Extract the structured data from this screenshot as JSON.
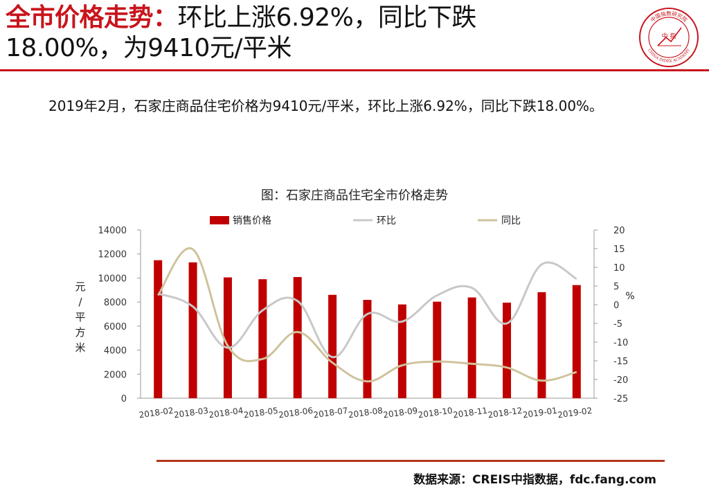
{
  "header": {
    "title_highlight": "全市价格走势：",
    "title_rest_line1": "环比上涨6.92%，同比下跌",
    "title_line2": "18.00%，为9410元/平米"
  },
  "logo": {
    "top_text": "中国指数研究院",
    "center_text": "中 指",
    "bottom_text": "CHINA INDEX ACADEMY"
  },
  "summary": "2019年2月，石家庄商品住宅价格为9410元/平米，环比上涨6.92%，同比下跌18.00%。",
  "source": "数据来源：CREIS中指数据，fdc.fang.com",
  "colors": {
    "accent": "#c8141c",
    "bar": "#c00000",
    "mom_line": "#c8c8c8",
    "yoy_line": "#cfc29c"
  },
  "chart_data": {
    "type": "bar",
    "title": "图：石家庄商品住宅全市价格走势",
    "categories": [
      "2018-02",
      "2018-03",
      "2018-04",
      "2018-05",
      "2018-06",
      "2018-07",
      "2018-08",
      "2018-09",
      "2018-10",
      "2018-11",
      "2018-12",
      "2019-01",
      "2019-02"
    ],
    "ylabel": "元/平方米",
    "y2label": "%",
    "ylim": [
      0,
      14000
    ],
    "yticks": [
      0,
      2000,
      4000,
      6000,
      8000,
      10000,
      12000,
      14000
    ],
    "y2lim": [
      -25,
      20
    ],
    "y2ticks": [
      -25,
      -20,
      -15,
      -10,
      -5,
      0,
      5,
      10,
      15,
      20
    ],
    "legend_position": "top",
    "series": [
      {
        "name": "销售价格",
        "type": "bar",
        "axis": "left",
        "values": [
          11480,
          11300,
          10050,
          9900,
          10080,
          8600,
          8180,
          7800,
          8030,
          8380,
          7950,
          8820,
          9410
        ]
      },
      {
        "name": "环比",
        "type": "line",
        "axis": "right",
        "values": [
          3.0,
          -0.5,
          -11.5,
          -1.5,
          1.0,
          -14.0,
          -2.5,
          -4.5,
          2.5,
          4.5,
          -5.0,
          10.8,
          6.92
        ]
      },
      {
        "name": "同比",
        "type": "line",
        "axis": "right",
        "values": [
          2.5,
          14.8,
          -11.0,
          -14.5,
          -7.3,
          -15.5,
          -20.5,
          -16.2,
          -15.2,
          -15.8,
          -16.8,
          -20.3,
          -18.0
        ]
      }
    ]
  }
}
